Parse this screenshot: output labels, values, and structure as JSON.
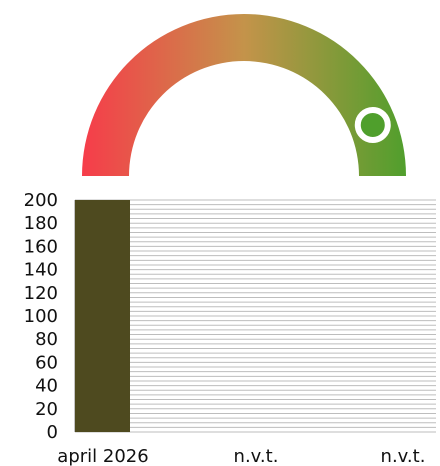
{
  "gauge": {
    "value_fraction": 0.88,
    "color_start": "#f73b4a",
    "color_mid": "#c4934a",
    "color_end": "#4f9f2c",
    "marker_fill": "#4f9f2c",
    "marker_ring": "#ffffff"
  },
  "chart_data": {
    "type": "bar",
    "categories": [
      "april 2026",
      "n.v.t.",
      "n.v.t."
    ],
    "values": [
      200,
      0,
      0
    ],
    "ylim": [
      0,
      200
    ],
    "yticks": [
      0,
      20,
      40,
      60,
      80,
      100,
      120,
      140,
      160,
      180,
      200
    ],
    "bar_color": "#4e4a1f",
    "grid": true,
    "grid_color": "#bdbdbd"
  }
}
